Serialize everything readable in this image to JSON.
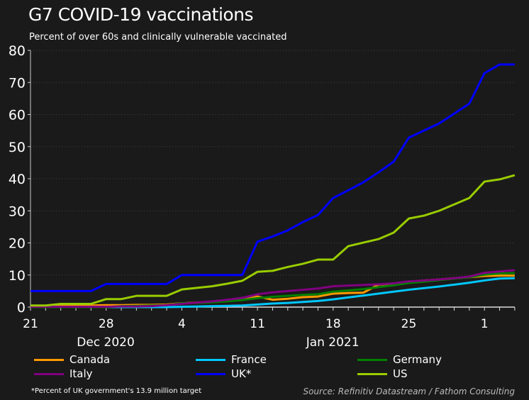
{
  "header": {
    "title": "G7 COVID-19 vaccinations",
    "subtitle": "Percent of over 60s and clinically vulnerable vaccinated"
  },
  "footnote": "*Percent of UK government's 13.9 million target",
  "source": "Source: Refinitiv Datastream / Fathom Consulting",
  "chart_data": {
    "type": "line",
    "title": "G7 COVID-19 vaccinations",
    "subtitle": "Percent of over 60s and clinically vulnerable vaccinated",
    "x_note": "weekdays from 21 Dec 2020 to 3 Feb 2021",
    "x_ticks": [
      {
        "index": 0,
        "label": "21"
      },
      {
        "index": 5,
        "label": "28"
      },
      {
        "index": 10,
        "label": "4"
      },
      {
        "index": 15,
        "label": "11"
      },
      {
        "index": 20,
        "label": "18"
      },
      {
        "index": 25,
        "label": "25"
      },
      {
        "index": 30,
        "label": "1"
      }
    ],
    "month_labels": [
      {
        "index": 4.5,
        "label": "Dec 2020"
      },
      {
        "index": 19.5,
        "label": "Jan 2021"
      }
    ],
    "ylim": [
      0,
      80
    ],
    "y_ticks": [
      0,
      10,
      20,
      30,
      40,
      50,
      60,
      70,
      80
    ],
    "grid": true,
    "legend": "bottom",
    "series": [
      {
        "name": "Canada",
        "color": "#ff9900",
        "values": [
          0.4,
          0.4,
          0.5,
          0.5,
          0.5,
          0.6,
          0.6,
          0.7,
          0.7,
          0.8,
          1.2,
          1.4,
          1.6,
          1.9,
          2.2,
          3.3,
          2.3,
          2.6,
          3.1,
          3.3,
          4.2,
          4.4,
          4.5,
          7.0,
          7.3,
          7.9,
          8.3,
          8.6,
          9.0,
          9.3,
          9.7,
          9.8,
          9.8
        ]
      },
      {
        "name": "France",
        "color": "#00c8ff",
        "values": [
          0,
          0,
          0,
          0,
          0,
          0,
          0,
          0,
          0,
          0,
          0.1,
          0.2,
          0.3,
          0.4,
          0.5,
          0.8,
          1.1,
          1.3,
          1.6,
          1.9,
          2.4,
          3.0,
          3.6,
          4.2,
          4.8,
          5.4,
          5.9,
          6.4,
          7.0,
          7.6,
          8.3,
          8.9,
          9.0
        ]
      },
      {
        "name": "Germany",
        "color": "#008000",
        "values": [
          0,
          0,
          0,
          0,
          0,
          0,
          0.3,
          0.4,
          0.5,
          0.6,
          1.2,
          1.3,
          1.5,
          1.8,
          2.2,
          2.8,
          3.2,
          3.5,
          3.8,
          4.0,
          4.8,
          5.2,
          5.6,
          6.2,
          6.8,
          7.5,
          7.9,
          8.4,
          8.9,
          9.3,
          10.1,
          10.5,
          10.6
        ]
      },
      {
        "name": "Italy",
        "color": "#800080",
        "values": [
          0.1,
          0.1,
          0.1,
          0.1,
          0.1,
          0.1,
          0.2,
          0.2,
          0.3,
          0.6,
          1.0,
          1.4,
          1.8,
          2.3,
          2.9,
          4.0,
          4.6,
          5.0,
          5.4,
          5.8,
          6.5,
          6.7,
          6.9,
          7.1,
          7.4,
          8.0,
          8.3,
          8.6,
          9.0,
          9.5,
          10.7,
          11.1,
          11.5
        ]
      },
      {
        "name": "UK*",
        "color": "#0000ff",
        "values": [
          5,
          5,
          5,
          5,
          5,
          7.2,
          7.2,
          7.2,
          7.2,
          7.2,
          10,
          10,
          10,
          10,
          10,
          20.4,
          22.0,
          23.9,
          26.5,
          28.7,
          34.0,
          36.4,
          38.9,
          42.0,
          45.3,
          52.8,
          55.0,
          57.2,
          60.3,
          63.4,
          72.9,
          75.6,
          75.6
        ]
      },
      {
        "name": "US",
        "color": "#99cc00",
        "values": [
          0.5,
          0.5,
          1,
          1,
          1,
          2.5,
          2.5,
          3.5,
          3.5,
          3.5,
          5.5,
          6,
          6.5,
          7.3,
          8.2,
          11,
          11.3,
          12.5,
          13.5,
          14.8,
          14.8,
          19.0,
          20.1,
          21.2,
          23.2,
          27.6,
          28.5,
          30.0,
          32.0,
          34.0,
          39.1,
          39.8,
          41.1
        ]
      }
    ]
  }
}
